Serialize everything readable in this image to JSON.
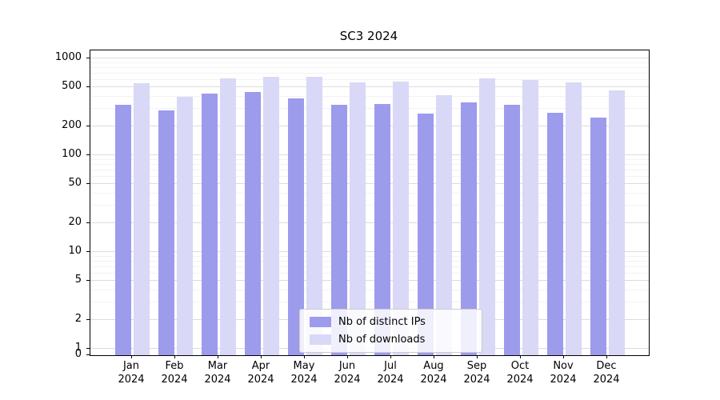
{
  "title": "SC3 2024",
  "chart_data": {
    "type": "bar",
    "title": "SC3 2024",
    "categories": [
      "Jan",
      "Feb",
      "Mar",
      "Apr",
      "May",
      "Jun",
      "Jul",
      "Aug",
      "Sep",
      "Oct",
      "Nov",
      "Dec"
    ],
    "year": "2024",
    "yscale": "log",
    "ylim": [
      0,
      1000
    ],
    "yticks": [
      0,
      1,
      2,
      5,
      10,
      20,
      50,
      100,
      200,
      500,
      1000
    ],
    "grid": true,
    "legend_position": "bottom-center",
    "series": [
      {
        "name": "Nb of distinct IPs",
        "color": "#9d9bec",
        "values": [
          330,
          290,
          430,
          450,
          385,
          330,
          340,
          270,
          350,
          330,
          275,
          245
        ]
      },
      {
        "name": "Nb of downloads",
        "color": "#d9d8f7",
        "values": [
          550,
          400,
          620,
          645,
          640,
          565,
          580,
          415,
          625,
          600,
          565,
          465
        ]
      }
    ]
  }
}
